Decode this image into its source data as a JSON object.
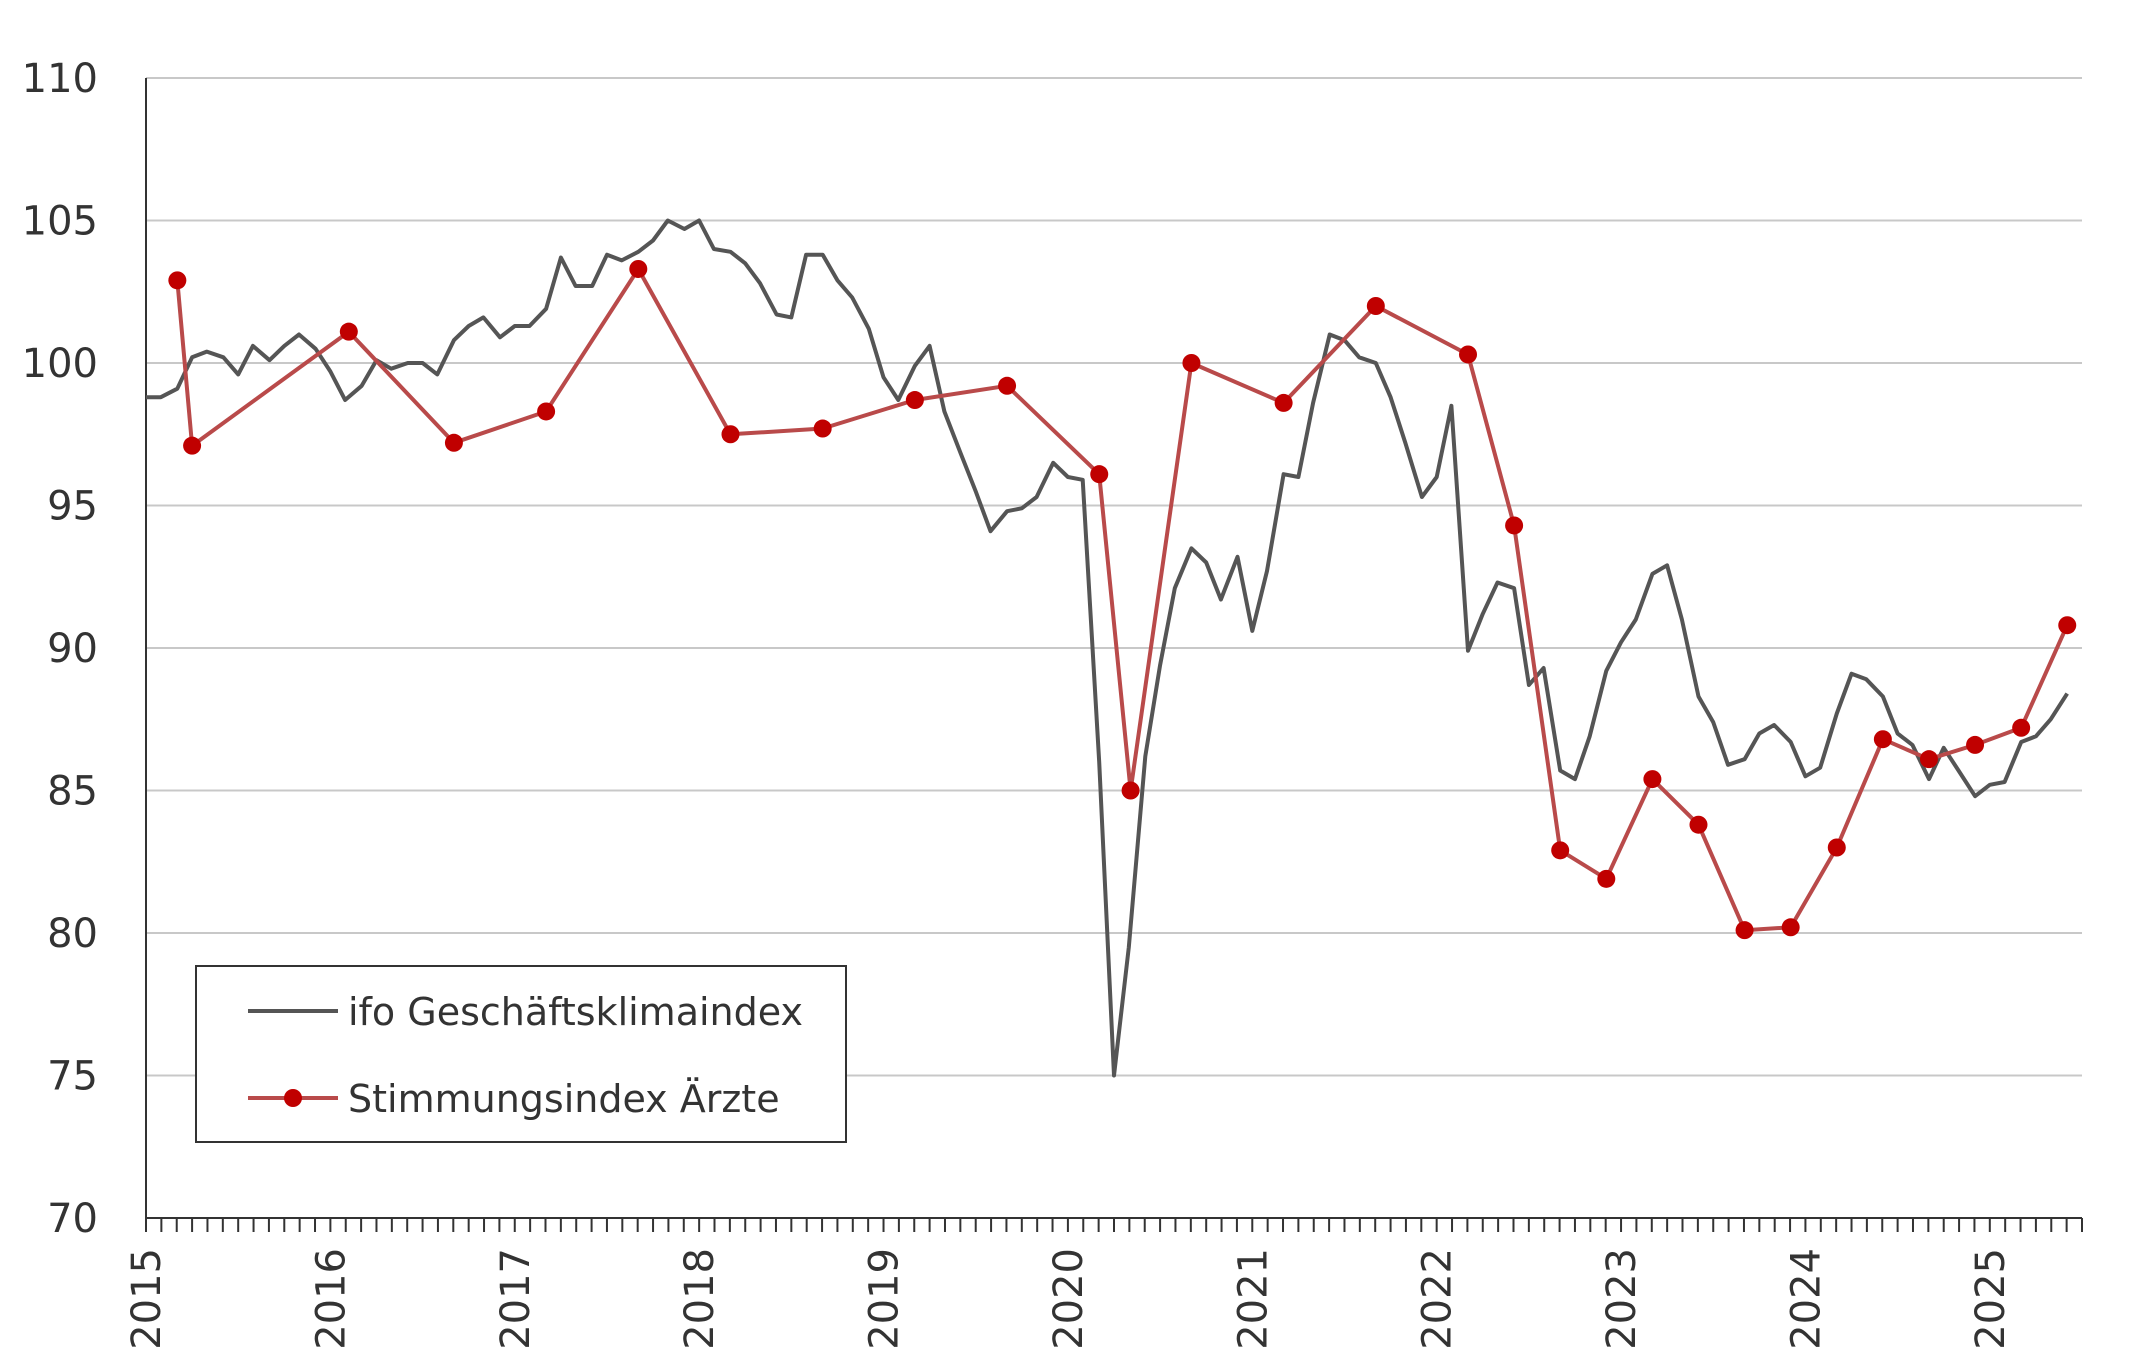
{
  "chart_data": {
    "type": "line",
    "title": "",
    "xlabel": "",
    "ylabel": "",
    "ylim": [
      70,
      110
    ],
    "yticks": [
      70,
      75,
      80,
      85,
      90,
      95,
      100,
      105,
      110
    ],
    "xlim": [
      2015.0,
      2025.5
    ],
    "x_tick_labels": [
      "2015",
      "2016",
      "2017",
      "2018",
      "2019",
      "2020",
      "2021",
      "2022",
      "2023",
      "2024",
      "2025"
    ],
    "grid": "horizontal",
    "legend_position": "bottom-left",
    "series": [
      {
        "name": "ifo Geschäftsklimaindex",
        "color": "#555555",
        "marker": "none",
        "x": [
          2015.0,
          2015.08,
          2015.17,
          2015.25,
          2015.33,
          2015.42,
          2015.5,
          2015.58,
          2015.67,
          2015.75,
          2015.83,
          2015.92,
          2016.0,
          2016.08,
          2016.17,
          2016.25,
          2016.33,
          2016.42,
          2016.5,
          2016.58,
          2016.67,
          2016.75,
          2016.83,
          2016.92,
          2017.0,
          2017.08,
          2017.17,
          2017.25,
          2017.33,
          2017.42,
          2017.5,
          2017.58,
          2017.67,
          2017.75,
          2017.83,
          2017.92,
          2018.0,
          2018.08,
          2018.17,
          2018.25,
          2018.33,
          2018.42,
          2018.5,
          2018.58,
          2018.67,
          2018.75,
          2018.83,
          2018.92,
          2019.0,
          2019.08,
          2019.17,
          2019.25,
          2019.33,
          2019.42,
          2019.5,
          2019.58,
          2019.67,
          2019.75,
          2019.83,
          2019.92,
          2020.0,
          2020.08,
          2020.17,
          2020.25,
          2020.33,
          2020.42,
          2020.5,
          2020.58,
          2020.67,
          2020.75,
          2020.83,
          2020.92,
          2021.0,
          2021.08,
          2021.17,
          2021.25,
          2021.33,
          2021.42,
          2021.5,
          2021.58,
          2021.67,
          2021.75,
          2021.83,
          2021.92,
          2022.0,
          2022.08,
          2022.17,
          2022.25,
          2022.33,
          2022.42,
          2022.5,
          2022.58,
          2022.67,
          2022.75,
          2022.83,
          2022.92,
          2023.0,
          2023.08,
          2023.17,
          2023.25,
          2023.33,
          2023.42,
          2023.5,
          2023.58,
          2023.67,
          2023.75,
          2023.83,
          2023.92,
          2024.0,
          2024.08,
          2024.17,
          2024.25,
          2024.33,
          2024.42,
          2024.5,
          2024.58,
          2024.67,
          2024.75,
          2024.83,
          2024.92,
          2025.0,
          2025.08,
          2025.17,
          2025.25,
          2025.33,
          2025.42
        ],
        "y": [
          98.8,
          98.8,
          99.1,
          100.2,
          100.4,
          100.2,
          99.6,
          100.6,
          100.1,
          100.6,
          101.0,
          100.5,
          99.7,
          98.7,
          99.2,
          100.1,
          99.8,
          100.0,
          100.0,
          99.6,
          100.8,
          101.3,
          101.6,
          100.9,
          101.3,
          101.3,
          101.9,
          103.7,
          102.7,
          102.7,
          103.8,
          103.6,
          103.9,
          104.3,
          105.0,
          104.7,
          105.0,
          104.0,
          103.9,
          103.5,
          102.8,
          101.7,
          101.6,
          103.8,
          103.8,
          102.9,
          102.3,
          101.2,
          99.5,
          98.7,
          99.9,
          100.6,
          98.3,
          96.8,
          95.5,
          94.1,
          94.8,
          94.9,
          95.3,
          96.5,
          96.0,
          95.9,
          86.0,
          75.0,
          79.5,
          86.2,
          89.4,
          92.1,
          93.5,
          93.0,
          91.7,
          93.2,
          90.6,
          92.7,
          96.1,
          96.0,
          98.6,
          101.0,
          100.8,
          100.2,
          100.0,
          98.8,
          97.2,
          95.3,
          96.0,
          98.5,
          89.9,
          91.2,
          92.3,
          92.1,
          88.7,
          89.3,
          85.7,
          85.4,
          86.9,
          89.2,
          90.2,
          91.0,
          92.6,
          92.9,
          91.0,
          88.3,
          87.4,
          85.9,
          86.1,
          87.0,
          87.3,
          86.7,
          85.5,
          85.8,
          87.7,
          89.1,
          88.9,
          88.3,
          87.0,
          86.6,
          85.4,
          86.5,
          85.7,
          84.8,
          85.2,
          85.3,
          86.7,
          86.9,
          87.5,
          88.4
        ]
      },
      {
        "name": "Stimmungsindex Ärzte",
        "color": "#b94a4a",
        "marker_color": "#c00000",
        "marker": "circle",
        "x": [
          2015.17,
          2015.25,
          2016.1,
          2016.67,
          2017.17,
          2017.67,
          2018.17,
          2018.67,
          2019.17,
          2019.67,
          2020.17,
          2020.34,
          2020.67,
          2021.17,
          2021.67,
          2022.17,
          2022.42,
          2022.67,
          2022.92,
          2023.17,
          2023.42,
          2023.67,
          2023.92,
          2024.17,
          2024.42,
          2024.67,
          2024.92,
          2025.17,
          2025.42
        ],
        "y": [
          102.9,
          97.1,
          101.1,
          97.2,
          98.3,
          103.3,
          97.5,
          97.7,
          98.7,
          99.2,
          96.1,
          85.0,
          100.0,
          98.6,
          102.0,
          100.3,
          94.3,
          82.9,
          81.9,
          85.4,
          83.8,
          80.1,
          80.2,
          83.0,
          86.8,
          86.1,
          86.6,
          87.2,
          90.8
        ]
      }
    ]
  }
}
